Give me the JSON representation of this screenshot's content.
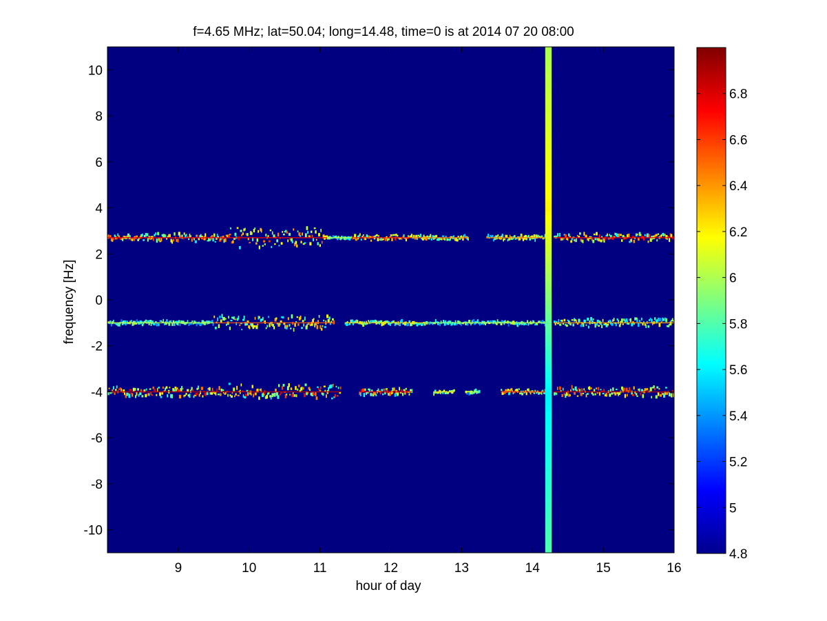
{
  "chart_data": {
    "type": "heatmap",
    "title": "f=4.65 MHz;  lat=50.04; long=14.48, time=0 is at 2014 07 20 08:00",
    "xlabel": "hour of day",
    "ylabel": "frequency [Hz]",
    "xlim": [
      8,
      16
    ],
    "ylim": [
      -11,
      11
    ],
    "xticks": [
      9,
      10,
      11,
      12,
      13,
      14,
      15,
      16
    ],
    "yticks": [
      -10,
      -8,
      -6,
      -4,
      -2,
      0,
      2,
      4,
      6,
      8,
      10
    ],
    "background_value": 4.8,
    "colorbar": {
      "colormap": "jet",
      "limits": [
        4.8,
        7.0
      ],
      "ticks": [
        4.8,
        5,
        5.2,
        5.4,
        5.6,
        5.8,
        6,
        6.2,
        6.4,
        6.6,
        6.8
      ]
    },
    "bands": [
      {
        "frequency": 2.7,
        "segments": [
          {
            "x": [
              8.0,
              9.7
            ],
            "peak": 6.9,
            "spread": 0.2
          },
          {
            "x": [
              9.7,
              11.1
            ],
            "peak": 6.9,
            "spread": 0.45
          },
          {
            "x": [
              11.1,
              11.45
            ],
            "peak": 6.2,
            "spread": 0.05
          },
          {
            "x": [
              11.45,
              12.3
            ],
            "peak": 6.8,
            "spread": 0.15
          },
          {
            "x": [
              12.3,
              13.1
            ],
            "peak": 6.6,
            "spread": 0.12
          },
          {
            "x": [
              13.35,
              14.2
            ],
            "peak": 6.6,
            "spread": 0.12
          },
          {
            "x": [
              14.3,
              16.0
            ],
            "peak": 6.9,
            "spread": 0.2
          }
        ]
      },
      {
        "frequency": -1.0,
        "segments": [
          {
            "x": [
              8.0,
              9.5
            ],
            "peak": 6.2,
            "spread": 0.1
          },
          {
            "x": [
              9.5,
              11.2
            ],
            "peak": 6.7,
            "spread": 0.35
          },
          {
            "x": [
              11.35,
              12.5
            ],
            "peak": 6.4,
            "spread": 0.1
          },
          {
            "x": [
              12.5,
              13.0
            ],
            "peak": 6.1,
            "spread": 0.08
          },
          {
            "x": [
              13.0,
              14.2
            ],
            "peak": 6.2,
            "spread": 0.1
          },
          {
            "x": [
              14.3,
              16.0
            ],
            "peak": 6.5,
            "spread": 0.2
          }
        ]
      },
      {
        "frequency": -4.0,
        "segments": [
          {
            "x": [
              8.0,
              9.6
            ],
            "peak": 7.0,
            "spread": 0.25
          },
          {
            "x": [
              9.6,
              11.3
            ],
            "peak": 7.0,
            "spread": 0.35
          },
          {
            "x": [
              11.55,
              12.3
            ],
            "peak": 6.9,
            "spread": 0.15
          },
          {
            "x": [
              12.6,
              12.9
            ],
            "peak": 6.4,
            "spread": 0.1
          },
          {
            "x": [
              13.05,
              13.25
            ],
            "peak": 6.2,
            "spread": 0.1
          },
          {
            "x": [
              13.55,
              14.2
            ],
            "peak": 6.8,
            "spread": 0.12
          },
          {
            "x": [
              14.3,
              16.0
            ],
            "peak": 7.0,
            "spread": 0.25
          }
        ]
      }
    ],
    "vertical_stripe": {
      "x": [
        14.18,
        14.27
      ],
      "value_at_top": 6.0,
      "value_at_4hz": 6.2,
      "value_at_0hz": 5.9,
      "value_at_minus4hz": 5.6,
      "value_at_bottom": 5.8
    }
  }
}
